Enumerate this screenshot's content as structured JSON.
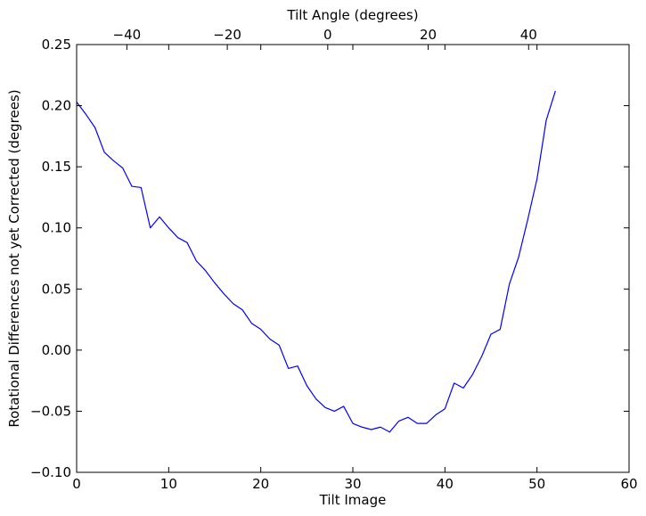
{
  "chart_data": {
    "type": "line",
    "xlabel": "Tilt Image",
    "ylabel": "Rotational Differences not yet Corrected (degrees)",
    "top_xlabel": "Tilt Angle (degrees)",
    "xlim": [
      0,
      60
    ],
    "ylim": [
      -0.1,
      0.25
    ],
    "x_ticks": [
      0,
      10,
      20,
      30,
      40,
      50,
      60
    ],
    "x_tick_labels": [
      "0",
      "10",
      "20",
      "30",
      "40",
      "50",
      "60"
    ],
    "y_ticks": [
      -0.1,
      -0.05,
      0.0,
      0.05,
      0.1,
      0.15,
      0.2,
      0.25
    ],
    "y_tick_labels": [
      "−0.10",
      "−0.05",
      "0.00",
      "0.05",
      "0.10",
      "0.15",
      "0.20",
      "0.25"
    ],
    "top_xlim": [
      -50,
      60
    ],
    "top_ticks": [
      -40,
      -20,
      0,
      20,
      40
    ],
    "top_tick_labels": [
      "−40",
      "−20",
      "0",
      "20",
      "40"
    ],
    "grid": false,
    "line_color": "#0000ff",
    "series": [
      {
        "x": [
          0,
          1,
          2,
          3,
          4,
          5,
          6,
          7,
          8,
          9,
          10,
          11,
          12,
          13,
          14,
          15,
          16,
          17,
          18,
          19,
          20,
          21,
          22,
          23,
          24,
          25,
          26,
          27,
          28,
          29,
          30,
          31,
          32,
          33,
          34,
          35,
          36,
          37,
          38,
          39,
          40,
          41,
          42,
          43,
          44,
          45,
          46,
          47,
          48,
          49,
          50,
          51,
          52
        ],
        "values": [
          0.203,
          0.193,
          0.182,
          0.162,
          0.155,
          0.149,
          0.134,
          0.133,
          0.1,
          0.109,
          0.1,
          0.092,
          0.088,
          0.073,
          0.065,
          0.055,
          0.046,
          0.038,
          0.033,
          0.022,
          0.017,
          0.009,
          0.004,
          -0.015,
          -0.013,
          -0.029,
          -0.04,
          -0.047,
          -0.05,
          -0.046,
          -0.06,
          -0.063,
          -0.065,
          -0.063,
          -0.067,
          -0.058,
          -0.055,
          -0.06,
          -0.06,
          -0.053,
          -0.048,
          -0.027,
          -0.031,
          -0.02,
          -0.005,
          0.013,
          0.017,
          0.054,
          0.076,
          0.107,
          0.14,
          0.188,
          0.212
        ]
      }
    ]
  }
}
